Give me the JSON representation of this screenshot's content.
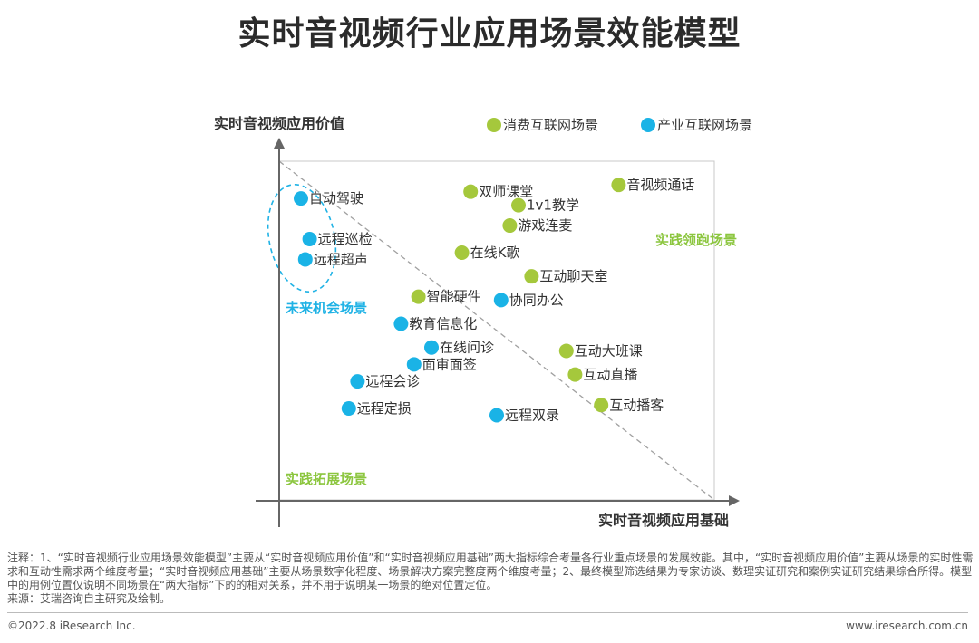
{
  "title": "实时音视频行业应用场景效能模型",
  "chart_data": {
    "type": "scatter",
    "xlabel": "实时音视频应用基础",
    "ylabel": "实时音视频应用价值",
    "xlim": [
      0,
      100
    ],
    "ylim": [
      0,
      100
    ],
    "legend_position": "top",
    "zones": {
      "top_right": "实践领跑场景",
      "middle_left": "未来机会场景",
      "bottom_left": "实践拓展场景"
    },
    "series": [
      {
        "name": "消费互联网场景",
        "color": "#a5c83c",
        "points": [
          {
            "label": "双师课堂",
            "x": 44,
            "y": 91
          },
          {
            "label": "1v1教学",
            "x": 55,
            "y": 87
          },
          {
            "label": "音视频通话",
            "x": 78,
            "y": 93
          },
          {
            "label": "游戏连麦",
            "x": 53,
            "y": 81
          },
          {
            "label": "在线K歌",
            "x": 42,
            "y": 73
          },
          {
            "label": "互动聊天室",
            "x": 58,
            "y": 66
          },
          {
            "label": "智能硬件",
            "x": 32,
            "y": 60
          },
          {
            "label": "互动大班课",
            "x": 66,
            "y": 44
          },
          {
            "label": "互动直播",
            "x": 68,
            "y": 37
          },
          {
            "label": "互动播客",
            "x": 74,
            "y": 28
          }
        ]
      },
      {
        "name": "产业互联网场景",
        "color": "#1ab3e6",
        "points": [
          {
            "label": "自动驾驶",
            "x": 5,
            "y": 89
          },
          {
            "label": "远程巡检",
            "x": 7,
            "y": 77
          },
          {
            "label": "远程超声",
            "x": 6,
            "y": 71
          },
          {
            "label": "协同办公",
            "x": 51,
            "y": 59
          },
          {
            "label": "教育信息化",
            "x": 28,
            "y": 52
          },
          {
            "label": "在线问诊",
            "x": 35,
            "y": 45
          },
          {
            "label": "面审面签",
            "x": 31,
            "y": 40
          },
          {
            "label": "远程会诊",
            "x": 18,
            "y": 35
          },
          {
            "label": "远程定损",
            "x": 16,
            "y": 27
          },
          {
            "label": "远程双录",
            "x": 50,
            "y": 25
          }
        ]
      }
    ]
  },
  "notes": {
    "line1": "注释：1、“实时音视频行业应用场景效能模型”主要从“实时音视频应用价值”和“实时音视频应用基础”两大指标综合考量各行业重点场景的发展效能。其中，“实时音视频应用价值”主要从场景的实时性需求和互动性需求两个维度考量；“实时音视频应用基础”主要从场景数字化程度、场景解决方案完整度两个维度考量；2、最终模型筛选结果为专家访谈、数理实证研究和案例实证研究结果综合所得。模型中的用例位置仅说明不同场景在“两大指标”下的的相对关系，并不用于说明某一场景的绝对位置定位。",
    "source": "来源：艾瑞咨询自主研究及绘制。"
  },
  "footer": {
    "copyright": "©2022.8 iResearch Inc.",
    "website": "www.iresearch.com.cn"
  }
}
